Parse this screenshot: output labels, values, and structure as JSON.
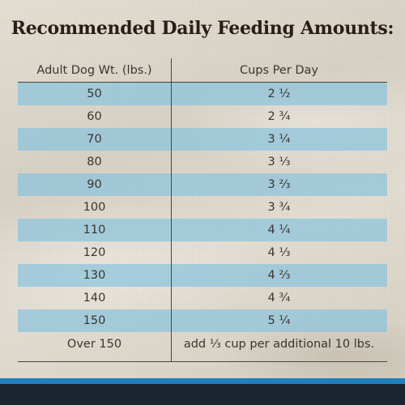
{
  "title": "Recommended Daily Feeding Amounts:",
  "table": {
    "headers": [
      "Adult Dog Wt. (lbs.)",
      "Cups Per Day"
    ],
    "rows": [
      {
        "weight": "50",
        "cups": "2 ½"
      },
      {
        "weight": "60",
        "cups": "2 ¾"
      },
      {
        "weight": "70",
        "cups": "3 ¼"
      },
      {
        "weight": "80",
        "cups": "3 ⅓"
      },
      {
        "weight": "90",
        "cups": "3 ⅔"
      },
      {
        "weight": "100",
        "cups": "3 ¾"
      },
      {
        "weight": "110",
        "cups": "4 ¼"
      },
      {
        "weight": "120",
        "cups": "4 ⅓"
      },
      {
        "weight": "130",
        "cups": "4 ⅔"
      },
      {
        "weight": "140",
        "cups": "4 ¾"
      },
      {
        "weight": "150",
        "cups": "5 ¼"
      },
      {
        "weight": "Over 150",
        "cups": "add ⅓ cup per additional 10 lbs."
      }
    ]
  },
  "colors": {
    "title": "#2a1d18",
    "row_shade": "#8cc4dc",
    "footer_blue": "#1f7fc1",
    "footer_dark": "#1a2530"
  }
}
